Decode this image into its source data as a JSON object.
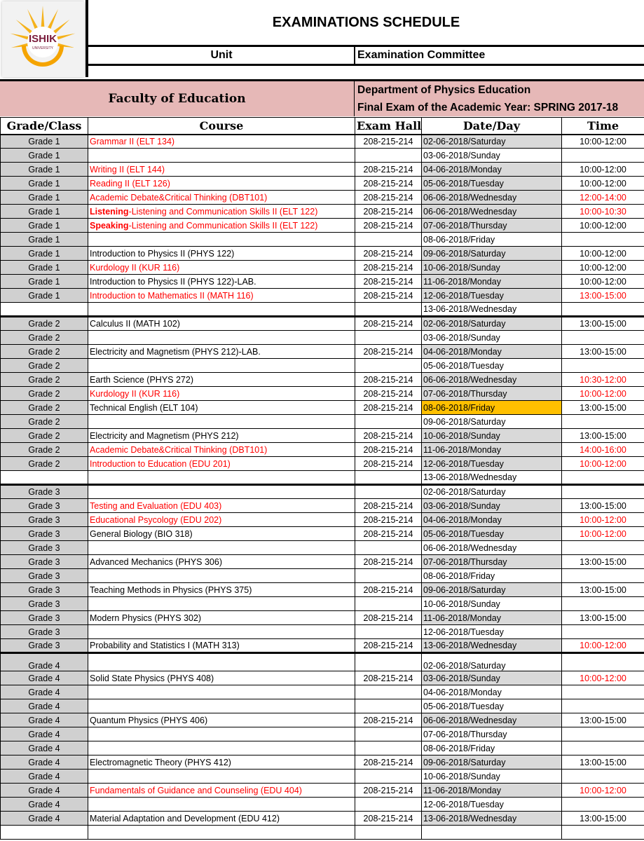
{
  "logo": {
    "text": "ISHIK",
    "subtext": "UNIVERSITY"
  },
  "title": "EXAMINATIONS SCHEDULE",
  "unit_label": "Unit",
  "unit_value": "Examination Committee",
  "faculty": "Faculty of Education",
  "department": "Department of Physics Education",
  "exam_period": "Final Exam of the Academic Year: SPRING 2017-18",
  "columns": [
    "Grade/Class",
    "Course",
    "Exam Hall",
    "Date/Day",
    "Time"
  ],
  "colors": {
    "header_bg": "#e6b8b7",
    "grade_bg": "#d0d0d0",
    "date_bg": "#d9d9d9",
    "highlight": "#ffc000",
    "alert": "#ff0000"
  },
  "groups": [
    {
      "rows": [
        {
          "grade": "Grade 1",
          "course": "Grammar II (ELT 134)",
          "course_red": true,
          "hall": "208-215-214",
          "date": "02-06-2018/Saturday",
          "time": "10:00-12:00"
        },
        {
          "grade": "Grade 1",
          "course": "",
          "hall": "",
          "date": "03-06-2018/Sunday",
          "time": ""
        },
        {
          "grade": "Grade 1",
          "course": "Writing II (ELT 144)",
          "course_red": true,
          "hall": "208-215-214",
          "date": "04-06-2018/Monday",
          "time": "10:00-12:00"
        },
        {
          "grade": "Grade 1",
          "course": "Reading II (ELT 126)",
          "course_red": true,
          "hall": "208-215-214",
          "date": "05-06-2018/Tuesday",
          "time": "10:00-12:00"
        },
        {
          "grade": "Grade 1",
          "course": "Academic Debate&Critical Thinking (DBT101)",
          "course_red": true,
          "hall": "208-215-214",
          "date": "06-06-2018/Wednesday",
          "time": "12:00-14:00",
          "time_red": true
        },
        {
          "grade": "Grade 1",
          "course_bold": "Listening",
          "course": "-Listening and Communication Skills II (ELT 122)",
          "course_red": true,
          "hall": "208-215-214",
          "date": "06-06-2018/Wednesday",
          "time": "10:00-10:30",
          "time_red": true
        },
        {
          "grade": "Grade 1",
          "course_bold": "Speaking",
          "course": "-Listening and Communication Skills II (ELT 122)",
          "course_red": true,
          "hall": "208-215-214",
          "date": "07-06-2018/Thursday",
          "time": "10:00-12:00"
        },
        {
          "grade": "Grade 1",
          "course": "",
          "hall": "",
          "date": "08-06-2018/Friday",
          "time": ""
        },
        {
          "grade": "Grade 1",
          "course": "Introduction to Physics II (PHYS 122)",
          "hall": "208-215-214",
          "date": "09-06-2018/Saturday",
          "time": "10:00-12:00"
        },
        {
          "grade": "Grade 1",
          "course": "Kurdology II (KUR 116)",
          "course_red": true,
          "hall": "208-215-214",
          "date": "10-06-2018/Sunday",
          "time": "10:00-12:00"
        },
        {
          "grade": "Grade 1",
          "course": "Introduction to Physics II (PHYS 122)-LAB.",
          "hall": "208-215-214",
          "date": "11-06-2018/Monday",
          "time": "10:00-12:00"
        },
        {
          "grade": "Grade 1",
          "course": "Introduction to Mathematics II (MATH 116)",
          "course_red": true,
          "hall": "208-215-214",
          "date": "12-06-2018/Tuesday",
          "time": "13:00-15:00",
          "time_red": true
        },
        {
          "grade": "",
          "course": "",
          "hall": "",
          "date": "13-06-2018/Wednesday",
          "time": ""
        }
      ]
    },
    {
      "rows": [
        {
          "grade": "Grade 2",
          "course": "Calculus II (MATH 102)",
          "hall": "208-215-214",
          "date": "02-06-2018/Saturday",
          "time": "13:00-15:00"
        },
        {
          "grade": "Grade 2",
          "course": "",
          "hall": "",
          "date": "03-06-2018/Sunday",
          "time": ""
        },
        {
          "grade": "Grade 2",
          "course": "Electricity and Magnetism (PHYS 212)-LAB.",
          "hall": "208-215-214",
          "date": "04-06-2018/Monday",
          "time": "13:00-15:00"
        },
        {
          "grade": "Grade 2",
          "course": "",
          "hall": "",
          "date": "05-06-2018/Tuesday",
          "time": ""
        },
        {
          "grade": "Grade 2",
          "course": "Earth Science (PHYS 272)",
          "hall": "208-215-214",
          "date": "06-06-2018/Wednesday",
          "time": "10:30-12:00",
          "time_red": true
        },
        {
          "grade": "Grade 2",
          "course": "Kurdology II (KUR 116)",
          "course_red": true,
          "hall": "208-215-214",
          "date": "07-06-2018/Thursday",
          "time": "10:00-12:00",
          "time_red": true
        },
        {
          "grade": "Grade 2",
          "course": "Technical English (ELT 104)",
          "hall": "208-215-214",
          "date": "08-06-2018/Friday",
          "date_highlight": true,
          "time": "13:00-15:00"
        },
        {
          "grade": "Grade 2",
          "course": "",
          "hall": "",
          "date": "09-06-2018/Saturday",
          "time": ""
        },
        {
          "grade": "Grade 2",
          "course": "Electricity and Magnetism (PHYS 212)",
          "hall": "208-215-214",
          "date": "10-06-2018/Sunday",
          "time": "13:00-15:00"
        },
        {
          "grade": "Grade 2",
          "course": "Academic Debate&Critical Thinking (DBT101)",
          "course_red": true,
          "hall": "208-215-214",
          "date": "11-06-2018/Monday",
          "time": "14:00-16:00",
          "time_red": true
        },
        {
          "grade": "Grade 2",
          "course": "Introduction to Education (EDU 201)",
          "course_red": true,
          "hall": "208-215-214",
          "date": "12-06-2018/Tuesday",
          "time": "10:00-12:00",
          "time_red": true
        },
        {
          "grade": "",
          "course": "",
          "hall": "",
          "date": "13-06-2018/Wednesday",
          "time": ""
        }
      ]
    },
    {
      "rows": [
        {
          "grade": "Grade 3",
          "course": "",
          "hall": "",
          "date": "02-06-2018/Saturday",
          "time": ""
        },
        {
          "grade": "Grade 3",
          "course": "Testing and Evaluation (EDU 403)",
          "course_red": true,
          "hall": "208-215-214",
          "date": "03-06-2018/Sunday",
          "time": "13:00-15:00"
        },
        {
          "grade": "Grade 3",
          "course": "Educational Psycology (EDU 202)",
          "course_red": true,
          "hall": "208-215-214",
          "date": "04-06-2018/Monday",
          "time": "10:00-12:00",
          "time_red": true
        },
        {
          "grade": "Grade 3",
          "course": "General Biology (BIO 318)",
          "hall": "208-215-214",
          "date": "05-06-2018/Tuesday",
          "time": "10:00-12:00",
          "time_red": true
        },
        {
          "grade": "Grade 3",
          "course": "",
          "hall": "",
          "date": "06-06-2018/Wednesday",
          "time": ""
        },
        {
          "grade": "Grade 3",
          "course": "Advanced Mechanics (PHYS 306)",
          "hall": "208-215-214",
          "date": "07-06-2018/Thursday",
          "time": "13:00-15:00"
        },
        {
          "grade": "Grade 3",
          "course": "",
          "hall": "",
          "date": "08-06-2018/Friday",
          "time": ""
        },
        {
          "grade": "Grade 3",
          "course": "Teaching Methods in Physics (PHYS 375)",
          "hall": "208-215-214",
          "date": "09-06-2018/Saturday",
          "time": "13:00-15:00"
        },
        {
          "grade": "Grade 3",
          "course": "",
          "hall": "",
          "date": "10-06-2018/Sunday",
          "time": ""
        },
        {
          "grade": "Grade 3",
          "course": "Modern Physics (PHYS 302)",
          "hall": "208-215-214",
          "date": "11-06-2018/Monday",
          "time": "13:00-15:00"
        },
        {
          "grade": "Grade 3",
          "course": "",
          "hall": "",
          "date": "12-06-2018/Tuesday",
          "time": ""
        },
        {
          "grade": "Grade 3",
          "course": "Probability and Statistics I (MATH 313)",
          "hall": "208-215-214",
          "date": "13-06-2018/Wednesday",
          "time": "10:00-12:00",
          "time_red": true
        }
      ]
    },
    {
      "rows": [
        {
          "grade": "Grade 4",
          "course": "",
          "hall": "",
          "date": "02-06-2018/Saturday",
          "time": ""
        },
        {
          "grade": "Grade 4",
          "course": "Solid State Physics (PHYS 408)",
          "hall": "208-215-214",
          "date": "03-06-2018/Sunday",
          "time": "10:00-12:00",
          "time_red": true
        },
        {
          "grade": "Grade 4",
          "course": "",
          "hall": "",
          "date": "04-06-2018/Monday",
          "time": ""
        },
        {
          "grade": "Grade 4",
          "course": "",
          "hall": "",
          "date": "05-06-2018/Tuesday",
          "time": ""
        },
        {
          "grade": "Grade 4",
          "course": "Quantum Physics (PHYS 406)",
          "hall": "208-215-214",
          "date": "06-06-2018/Wednesday",
          "time": "13:00-15:00"
        },
        {
          "grade": "Grade 4",
          "course": "",
          "hall": "",
          "date": "07-06-2018/Thursday",
          "time": ""
        },
        {
          "grade": "Grade 4",
          "course": "",
          "hall": "",
          "date": "08-06-2018/Friday",
          "time": ""
        },
        {
          "grade": "Grade 4",
          "course": "Electromagnetic Theory (PHYS 412)",
          "hall": "208-215-214",
          "date": "09-06-2018/Saturday",
          "time": "13:00-15:00"
        },
        {
          "grade": "Grade 4",
          "course": "",
          "hall": "",
          "date": "10-06-2018/Sunday",
          "time": ""
        },
        {
          "grade": "Grade 4",
          "course": "Fundamentals of Guidance and Counseling (EDU 404)",
          "course_red": true,
          "hall": "208-215-214",
          "date": "11-06-2018/Monday",
          "time": "10:00-12:00",
          "time_red": true
        },
        {
          "grade": "Grade 4",
          "course": "",
          "hall": "",
          "date": "12-06-2018/Tuesday",
          "time": ""
        },
        {
          "grade": "Grade 4",
          "course": "Material Adaptation and Development (EDU 412)",
          "hall": "208-215-214",
          "date": "13-06-2018/Wednesday",
          "time": "13:00-15:00"
        },
        {
          "grade": "",
          "course": "",
          "hall": "",
          "date": "",
          "time": ""
        }
      ]
    }
  ]
}
